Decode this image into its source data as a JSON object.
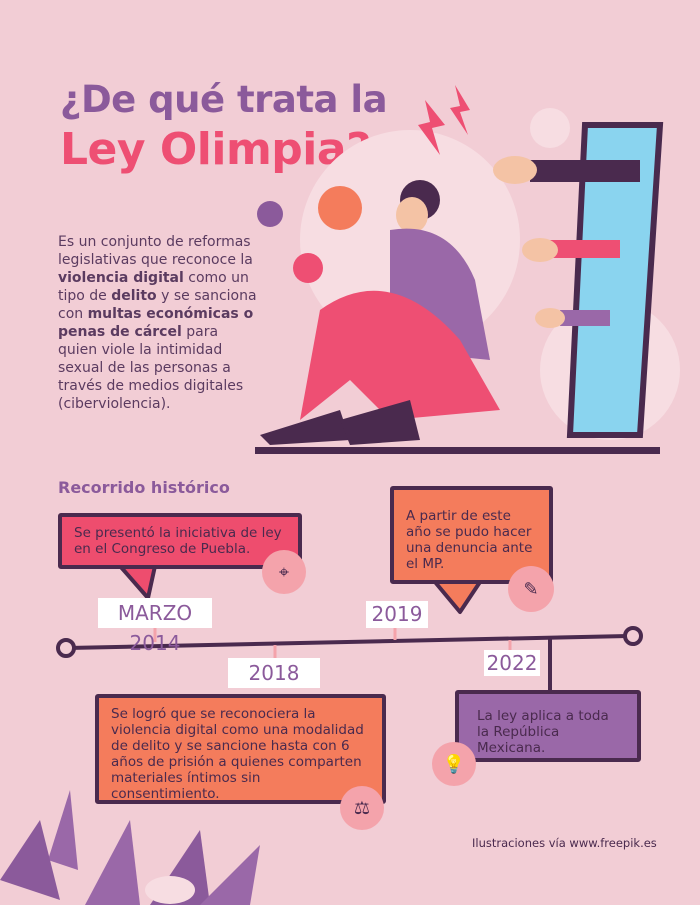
{
  "header": {
    "title_line1": "¿De qué trata la",
    "title_line2": "Ley Olimpia?"
  },
  "intro": {
    "p1": "Es un conjunto de reformas legislativas que reconoce la ",
    "b1": "violencia digital",
    "p2": " como un tipo de ",
    "b2": "delito",
    "p3": " y se sanciona con ",
    "b3": "multas económicas o penas de cárcel",
    "p4": " para quien viole la intimidad sexual de las personas a través de medios digitales (ciberviolencia)."
  },
  "timeline": {
    "heading": "Recorrido histórico",
    "events": [
      {
        "date": "MARZO 2014",
        "text": "Se presentó la iniciativa de ley en el Congreso de Puebla.",
        "icon": "location-pin-icon",
        "color": "#ee4d6e"
      },
      {
        "date": "2018",
        "text": "Se logró que se reconociera la violencia digital como una modalidad de delito y se sancione hasta con 6 años de prisión a quienes comparten materiales íntimos sin consentimiento.",
        "icon": "gavel-icon",
        "color": "#f47c5c"
      },
      {
        "date": "2019",
        "text": "A partir de este año se pudo hacer una denuncia ante el MP.",
        "icon": "document-pen-icon",
        "color": "#f47c5c"
      },
      {
        "date": "2022",
        "text": "La ley aplica a toda la República Mexicana.",
        "icon": "lightbulb-icon",
        "color": "#9a68a8"
      }
    ]
  },
  "footer": {
    "credit": "Ilustraciones vía www.freepik.es"
  },
  "colors": {
    "background": "#f2cdd5",
    "purple": "#8b5a9b",
    "pink": "#ee4f73",
    "dark": "#4a2a4e"
  }
}
